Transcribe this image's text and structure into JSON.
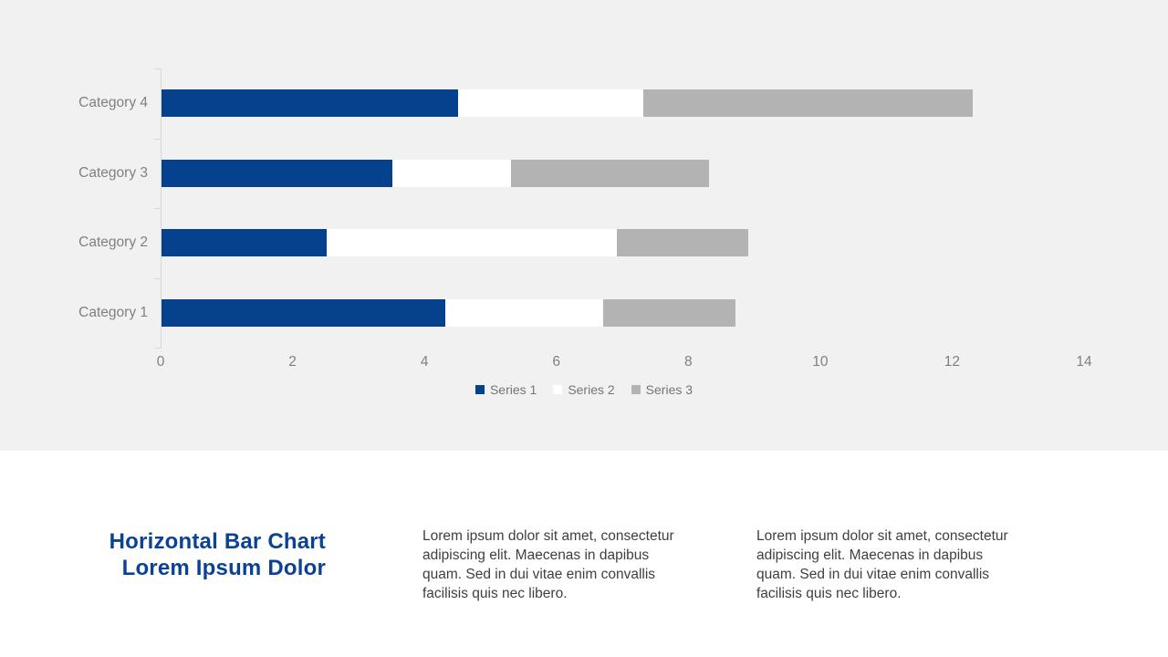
{
  "slide": {
    "background": "#FFFFFF",
    "chart_band_background": "#F1F1F2"
  },
  "chart_data": {
    "type": "bar",
    "orientation": "horizontal",
    "stacked": true,
    "categories": [
      "Category 1",
      "Category 2",
      "Category 3",
      "Category 4"
    ],
    "category_axis_order": "bottom-to-top",
    "series": [
      {
        "name": "Series 1",
        "color": "#05418D",
        "values": [
          4.3,
          2.5,
          3.5,
          4.5
        ]
      },
      {
        "name": "Series 2",
        "color": "#FFFFFF",
        "values": [
          2.4,
          4.4,
          1.8,
          2.8
        ]
      },
      {
        "name": "Series 3",
        "color": "#B3B3B3",
        "values": [
          2.0,
          2.0,
          3.0,
          5.0
        ]
      }
    ],
    "x_ticks": [
      0,
      2,
      4,
      6,
      8,
      10,
      12,
      14
    ],
    "xlim": [
      0,
      14
    ],
    "grid": false,
    "legend_position": "bottom-center",
    "axis_color": "#D9D9D9",
    "label_color": "#808080",
    "legend_text_color": "#757575"
  },
  "content": {
    "title": {
      "color": "#0B4296",
      "lines": [
        "Horizontal Bar Chart",
        "Lorem Ipsum Dolor"
      ]
    },
    "columns": [
      {
        "lines": [
          "Lorem ipsum dolor sit amet, consectetur",
          "adipiscing elit. Maecenas in dapibus",
          "quam. Sed in dui vitae enim convallis",
          "facilisis quis nec libero."
        ]
      },
      {
        "lines": [
          "Lorem ipsum dolor sit amet, consectetur",
          "adipiscing elit. Maecenas in dapibus",
          "quam. Sed in dui vitae enim convallis",
          "facilisis quis nec libero."
        ]
      }
    ]
  }
}
